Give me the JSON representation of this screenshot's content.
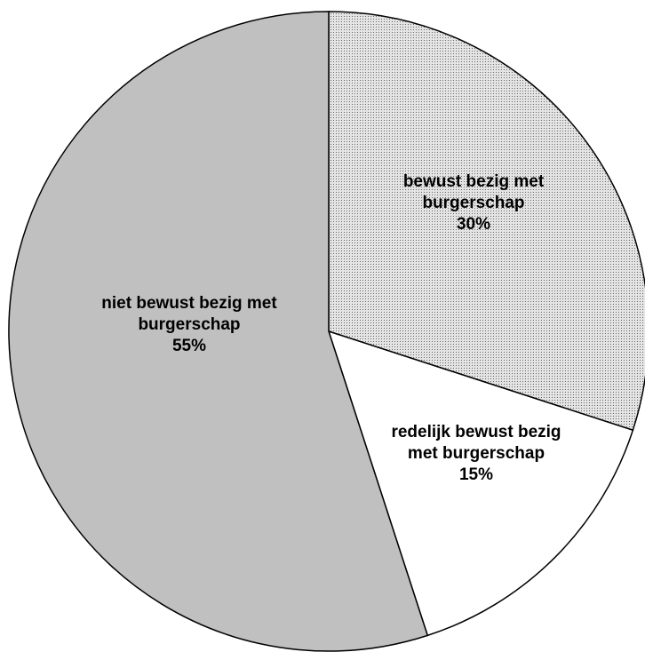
{
  "chart_data": {
    "type": "pie",
    "categories": [
      "bewust bezig met burgerschap",
      "redelijk bewust bezig met burgerschap",
      "niet bewust bezig met burgerschap"
    ],
    "values": [
      30,
      15,
      55
    ],
    "value_labels": [
      "30%",
      "15%",
      "55%"
    ],
    "colors": [
      "dotted",
      "#ffffff",
      "#c0c0c0"
    ]
  }
}
